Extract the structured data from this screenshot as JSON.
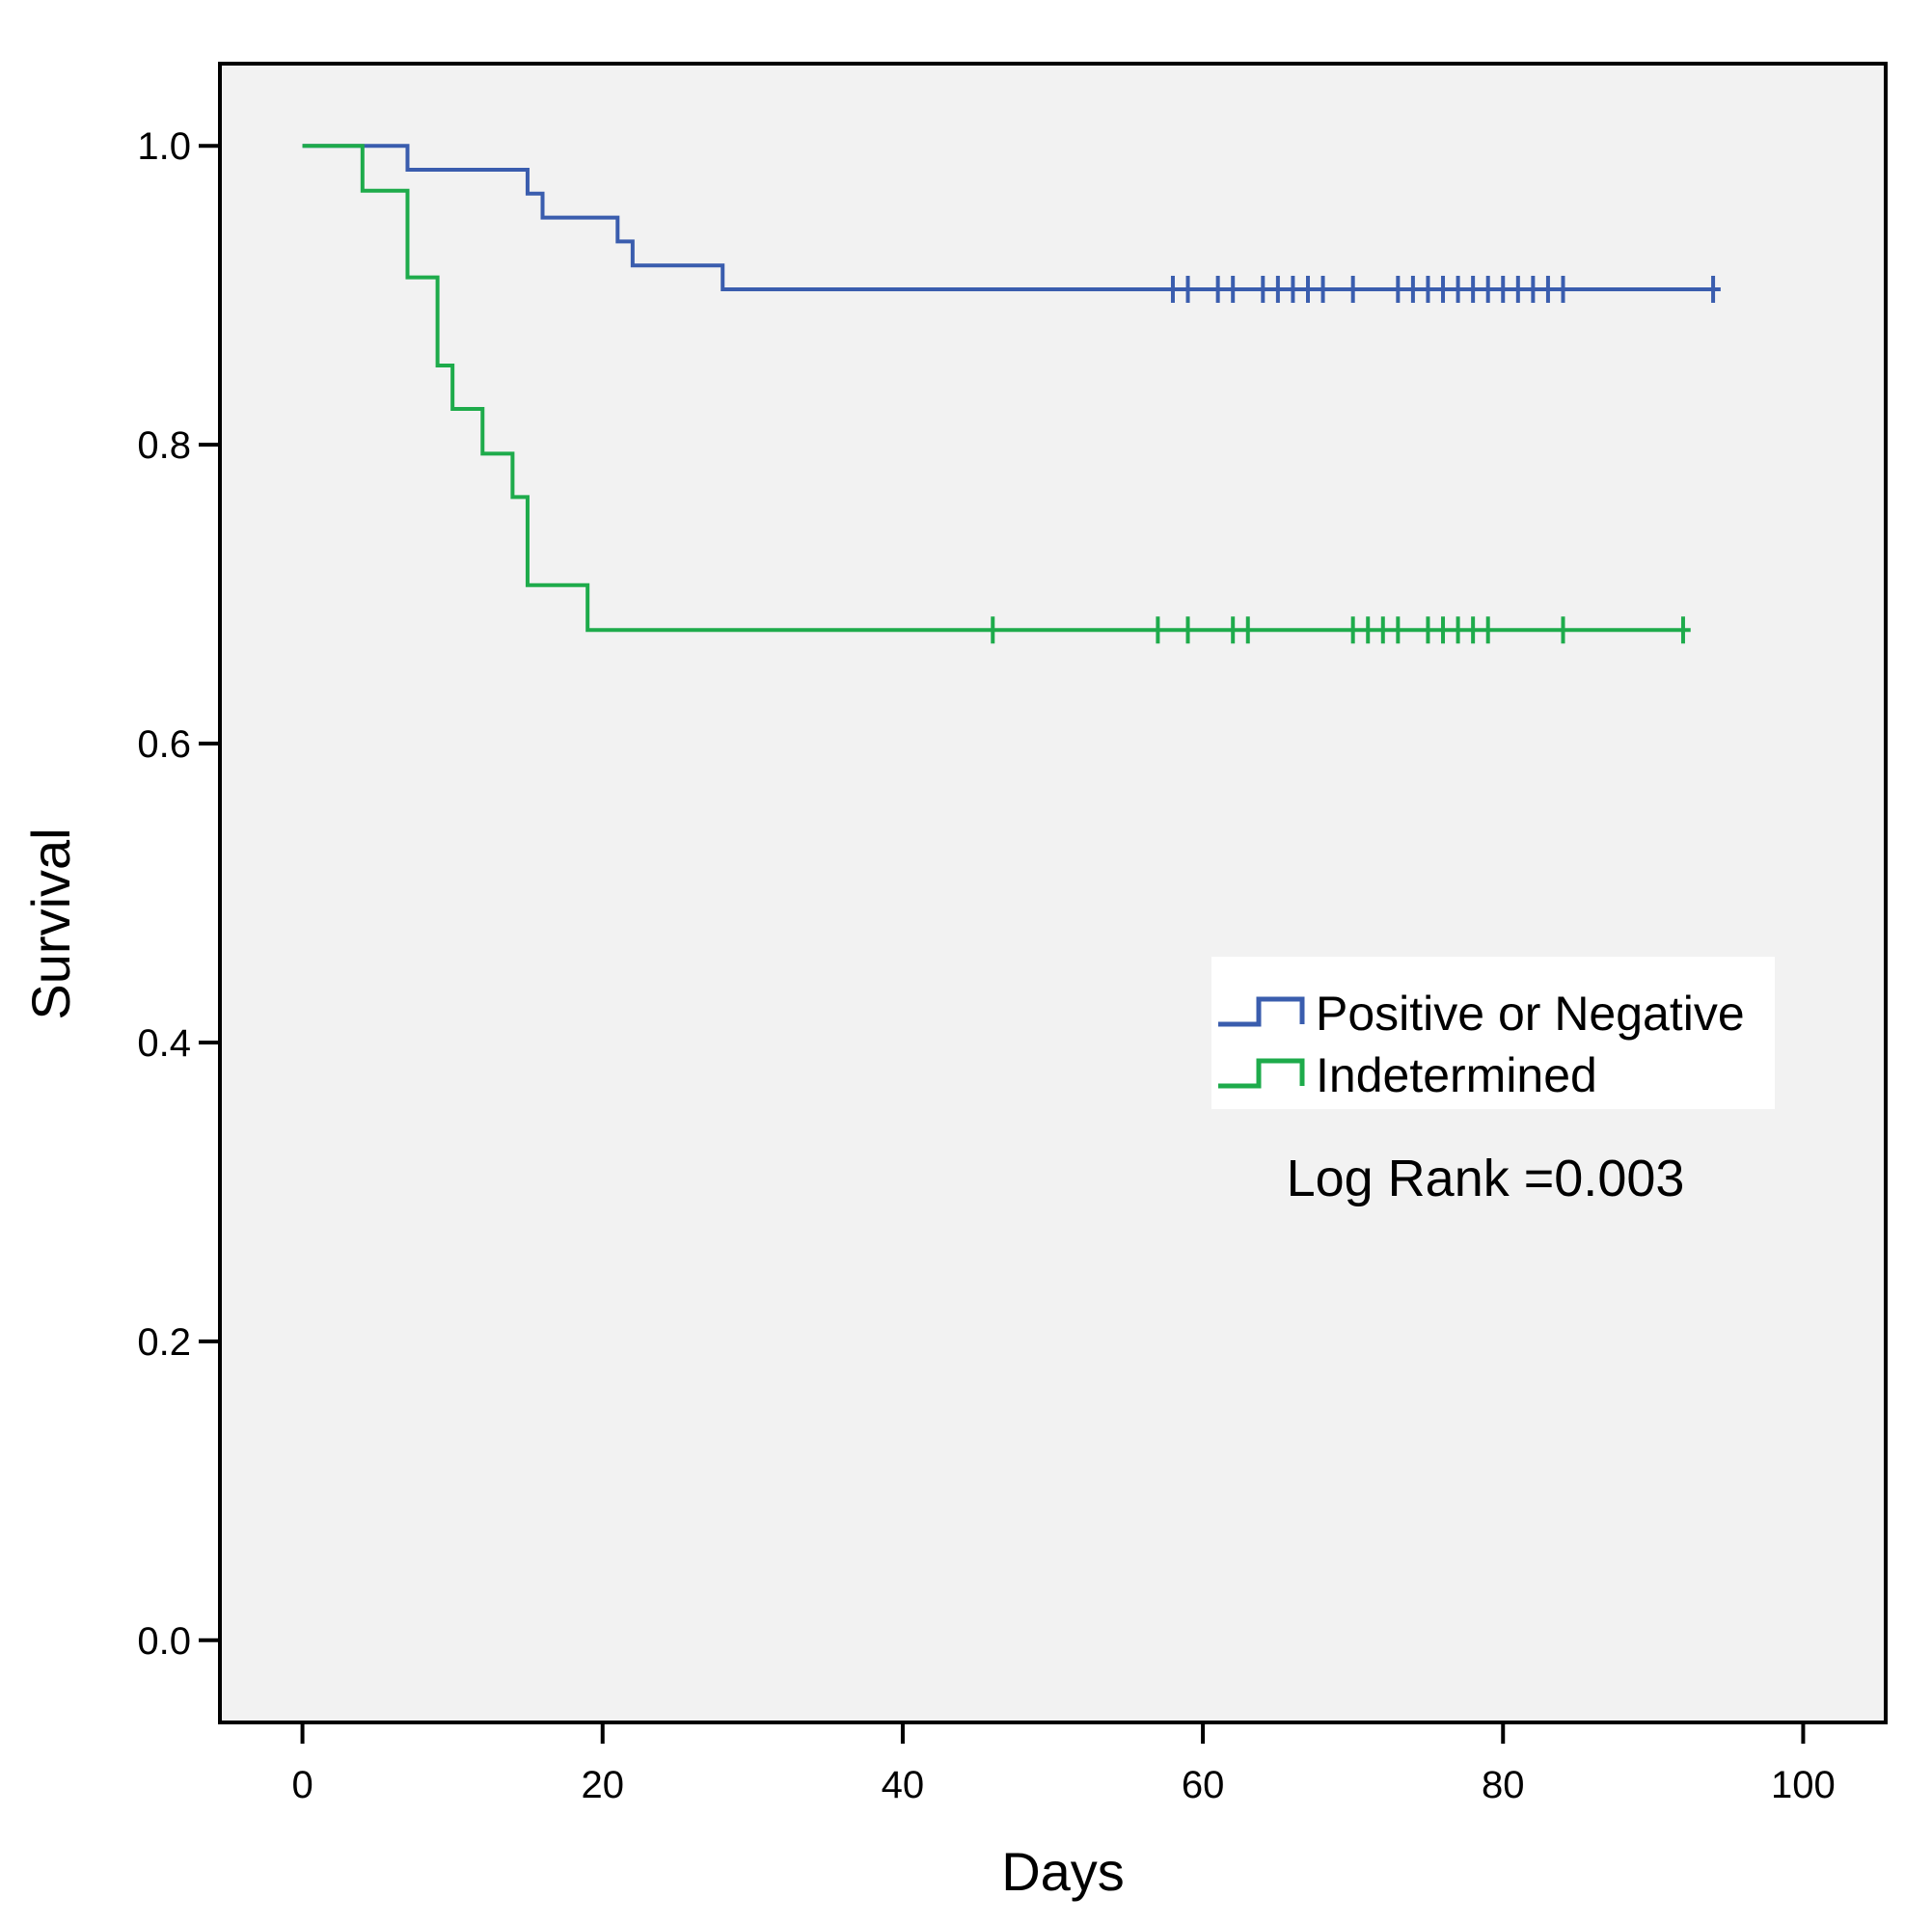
{
  "chart_data": {
    "type": "line",
    "subtype": "kaplan-meier",
    "title": "",
    "xlabel": "Days",
    "ylabel": "Survival",
    "xlim": [
      -5.5,
      105.5
    ],
    "ylim": [
      -0.055,
      1.055
    ],
    "xticks": [
      0,
      20,
      40,
      60,
      80,
      100
    ],
    "xtick_labels": [
      "0",
      "20",
      "40",
      "60",
      "80",
      "100"
    ],
    "yticks": [
      0.0,
      0.2,
      0.4,
      0.6,
      0.8,
      1.0
    ],
    "ytick_labels": [
      "0.0",
      "0.2",
      "0.4",
      "0.6",
      "0.8",
      "1.0"
    ],
    "grid": false,
    "legend_position": "center-right",
    "annotation": "Log Rank =0.003",
    "series": [
      {
        "name": "Positive or Negative",
        "color": "#3a5dae",
        "steps": [
          [
            0,
            1.0
          ],
          [
            7,
            0.984
          ],
          [
            15,
            0.968
          ],
          [
            16,
            0.952
          ],
          [
            21,
            0.936
          ],
          [
            22,
            0.92
          ],
          [
            28,
            0.904
          ]
        ],
        "end_x": 94.5,
        "censored": [
          [
            58,
            0.904
          ],
          [
            59,
            0.904
          ],
          [
            61,
            0.904
          ],
          [
            62,
            0.904
          ],
          [
            64,
            0.904
          ],
          [
            65,
            0.904
          ],
          [
            66,
            0.904
          ],
          [
            67,
            0.904
          ],
          [
            68,
            0.904
          ],
          [
            70,
            0.904
          ],
          [
            73,
            0.904
          ],
          [
            74,
            0.904
          ],
          [
            75,
            0.904
          ],
          [
            76,
            0.904
          ],
          [
            77,
            0.904
          ],
          [
            78,
            0.904
          ],
          [
            79,
            0.904
          ],
          [
            80,
            0.904
          ],
          [
            81,
            0.904
          ],
          [
            82,
            0.904
          ],
          [
            83,
            0.904
          ],
          [
            84,
            0.904
          ],
          [
            94,
            0.904
          ]
        ]
      },
      {
        "name": "Indetermined",
        "color": "#1eab4b",
        "steps": [
          [
            0,
            1.0
          ],
          [
            4,
            0.97
          ],
          [
            7,
            0.912
          ],
          [
            9,
            0.853
          ],
          [
            10,
            0.824
          ],
          [
            12,
            0.794
          ],
          [
            14,
            0.765
          ],
          [
            15,
            0.706
          ],
          [
            19,
            0.676
          ]
        ],
        "end_x": 92.5,
        "censored": [
          [
            46,
            0.676
          ],
          [
            57,
            0.676
          ],
          [
            59,
            0.676
          ],
          [
            62,
            0.676
          ],
          [
            63,
            0.676
          ],
          [
            70,
            0.676
          ],
          [
            71,
            0.676
          ],
          [
            72,
            0.676
          ],
          [
            73,
            0.676
          ],
          [
            75,
            0.676
          ],
          [
            76,
            0.676
          ],
          [
            77,
            0.676
          ],
          [
            78,
            0.676
          ],
          [
            79,
            0.676
          ],
          [
            84,
            0.676
          ],
          [
            92,
            0.676
          ]
        ]
      }
    ]
  }
}
